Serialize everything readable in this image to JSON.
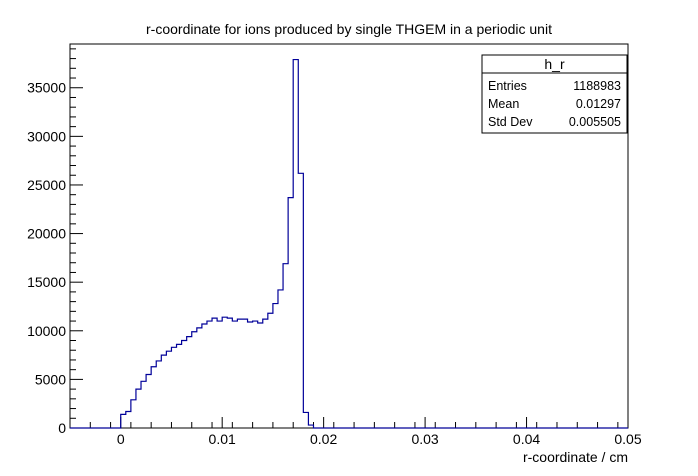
{
  "chart_data": {
    "type": "bar",
    "title": "r-coordinate for ions produced by single THGEM in a periodic unit",
    "xlabel": "r-coordinate / cm",
    "ylabel": "",
    "xlim": [
      -0.005,
      0.05
    ],
    "ylim": [
      0,
      39500
    ],
    "x_ticks": [
      0,
      0.01,
      0.02,
      0.03,
      0.04,
      0.05
    ],
    "x_tick_labels": [
      "0",
      "0.01",
      "0.02",
      "0.03",
      "0.04",
      "0.05"
    ],
    "y_ticks": [
      0,
      5000,
      10000,
      15000,
      20000,
      25000,
      30000,
      35000
    ],
    "y_tick_labels": [
      "0",
      "5000",
      "10000",
      "15000",
      "20000",
      "25000",
      "30000",
      "35000"
    ],
    "bin_width": 0.0005,
    "bin_start": 0,
    "values": [
      1400,
      1700,
      2900,
      4000,
      4800,
      5500,
      6300,
      6900,
      7500,
      7900,
      8300,
      8600,
      9000,
      9400,
      9900,
      10300,
      10700,
      11000,
      11300,
      11000,
      11400,
      11300,
      11000,
      11200,
      11200,
      10900,
      11000,
      10800,
      11200,
      11800,
      12800,
      14200,
      16900,
      23700,
      37900,
      26200,
      1600,
      300
    ],
    "line_color": "#000099",
    "grid": false,
    "legend": "none",
    "stats_box": {
      "title": "h_r",
      "rows": [
        {
          "label": "Entries",
          "value": "1188983"
        },
        {
          "label": "Mean",
          "value": "0.01297"
        },
        {
          "label": "Std Dev",
          "value": "0.005505"
        }
      ]
    }
  }
}
